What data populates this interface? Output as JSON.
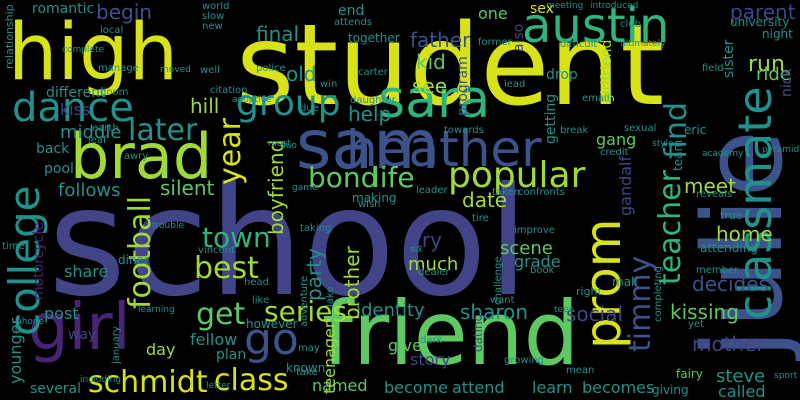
{
  "palette": {
    "background": "#000000",
    "yellow": "#d8e219",
    "lime": "#a0da39",
    "green": "#5ec962",
    "teal_green": "#2fb47c",
    "teal": "#21918c",
    "blue_teal": "#2c728e",
    "slate": "#3b528b",
    "indigo": "#414487",
    "purple": "#482475",
    "dark_purple": "#440154"
  },
  "words": [
    {
      "text": "school",
      "color": "indigo",
      "vertical": false
    },
    {
      "text": "student",
      "color": "yellow",
      "vertical": false
    },
    {
      "text": "high",
      "color": "yellow",
      "vertical": false
    },
    {
      "text": "friend",
      "color": "green",
      "vertical": false
    },
    {
      "text": "julie",
      "color": "slate",
      "vertical": true
    },
    {
      "text": "sam",
      "color": "slate",
      "vertical": false
    },
    {
      "text": "classmate",
      "color": "teal",
      "vertical": true
    },
    {
      "text": "brad",
      "color": "lime",
      "vertical": false
    },
    {
      "text": "heather",
      "color": "slate",
      "vertical": false
    },
    {
      "text": "sara",
      "color": "teal_green",
      "vertical": false
    },
    {
      "text": "austin",
      "color": "teal_green",
      "vertical": false
    },
    {
      "text": "girl",
      "color": "purple",
      "vertical": false
    },
    {
      "text": "prom",
      "color": "yellow",
      "vertical": true
    },
    {
      "text": "college",
      "color": "teal",
      "vertical": true
    },
    {
      "text": "popular",
      "color": "lime",
      "vertical": false
    },
    {
      "text": "dance",
      "color": "teal",
      "vertical": false
    },
    {
      "text": "group",
      "color": "teal",
      "vertical": false
    },
    {
      "text": "go",
      "color": "slate",
      "vertical": false
    },
    {
      "text": "bond",
      "color": "green",
      "vertical": false
    },
    {
      "text": "life",
      "color": "green",
      "vertical": false
    },
    {
      "text": "year",
      "color": "yellow",
      "vertical": true
    },
    {
      "text": "schmidt",
      "color": "yellow",
      "vertical": false
    },
    {
      "text": "class",
      "color": "yellow",
      "vertical": false
    },
    {
      "text": "football",
      "color": "lime",
      "vertical": true
    },
    {
      "text": "timmy",
      "color": "slate",
      "vertical": true
    },
    {
      "text": "teacher",
      "color": "teal_green",
      "vertical": true
    },
    {
      "text": "find",
      "color": "teal",
      "vertical": true
    },
    {
      "text": "later",
      "color": "teal",
      "vertical": false
    },
    {
      "text": "best",
      "color": "lime",
      "vertical": false
    },
    {
      "text": "town",
      "color": "teal_green",
      "vertical": false
    },
    {
      "text": "get",
      "color": "green",
      "vertical": false
    },
    {
      "text": "series",
      "color": "lime",
      "vertical": false
    },
    {
      "text": "begin",
      "color": "slate",
      "vertical": false
    },
    {
      "text": "final",
      "color": "teal",
      "vertical": false
    },
    {
      "text": "father",
      "color": "slate",
      "vertical": false
    },
    {
      "text": "kid",
      "color": "green",
      "vertical": false
    },
    {
      "text": "see",
      "color": "lime",
      "vertical": false
    },
    {
      "text": "old",
      "color": "teal",
      "vertical": false
    },
    {
      "text": "help",
      "color": "teal",
      "vertical": false
    },
    {
      "text": "boyfriend",
      "color": "lime",
      "vertical": true
    },
    {
      "text": "silent",
      "color": "green",
      "vertical": false
    },
    {
      "text": "hill",
      "color": "lime",
      "vertical": false
    },
    {
      "text": "middle",
      "color": "teal",
      "vertical": false
    },
    {
      "text": "follows",
      "color": "teal",
      "vertical": false
    },
    {
      "text": "mother",
      "color": "indigo",
      "vertical": false
    },
    {
      "text": "kissing",
      "color": "green",
      "vertical": false
    },
    {
      "text": "social",
      "color": "indigo",
      "vertical": false
    },
    {
      "text": "sharon",
      "color": "teal",
      "vertical": false
    },
    {
      "text": "identity",
      "color": "teal",
      "vertical": false
    },
    {
      "text": "party",
      "color": "teal",
      "vertical": true
    },
    {
      "text": "brother",
      "color": "lime",
      "vertical": true
    },
    {
      "text": "date",
      "color": "lime",
      "vertical": false
    },
    {
      "text": "try",
      "color": "indigo",
      "vertical": false
    },
    {
      "text": "much",
      "color": "lime",
      "vertical": false
    },
    {
      "text": "scene",
      "color": "green",
      "vertical": false
    },
    {
      "text": "grade",
      "color": "teal",
      "vertical": false
    },
    {
      "text": "home",
      "color": "lime",
      "vertical": false
    },
    {
      "text": "meet",
      "color": "lime",
      "vertical": false
    },
    {
      "text": "run",
      "color": "lime",
      "vertical": false
    },
    {
      "text": "ride",
      "color": "green",
      "vertical": false
    },
    {
      "text": "parent",
      "color": "indigo",
      "vertical": false
    },
    {
      "text": "decides",
      "color": "slate",
      "vertical": false
    },
    {
      "text": "steve",
      "color": "teal",
      "vertical": false
    },
    {
      "text": "called",
      "color": "teal",
      "vertical": false
    },
    {
      "text": "become",
      "color": "teal",
      "vertical": false
    },
    {
      "text": "attend",
      "color": "teal",
      "vertical": false
    },
    {
      "text": "learn",
      "color": "teal",
      "vertical": false
    },
    {
      "text": "becomes",
      "color": "teal",
      "vertical": false
    },
    {
      "text": "named",
      "color": "green",
      "vertical": false
    },
    {
      "text": "story",
      "color": "indigo",
      "vertical": false
    },
    {
      "text": "give",
      "color": "green",
      "vertical": false
    },
    {
      "text": "teenager",
      "color": "lime",
      "vertical": true
    },
    {
      "text": "day",
      "color": "lime",
      "vertical": false
    },
    {
      "text": "fellow",
      "color": "teal",
      "vertical": false
    },
    {
      "text": "plan",
      "color": "teal",
      "vertical": false
    },
    {
      "text": "share",
      "color": "teal",
      "vertical": false
    },
    {
      "text": "post",
      "color": "teal",
      "vertical": false
    },
    {
      "text": "way",
      "color": "indigo",
      "vertical": false
    },
    {
      "text": "younger",
      "color": "teal",
      "vertical": true
    },
    {
      "text": "several",
      "color": "teal",
      "vertical": false
    },
    {
      "text": "motorcycle",
      "color": "purple",
      "vertical": true
    },
    {
      "text": "kiss",
      "color": "indigo",
      "vertical": false
    },
    {
      "text": "back",
      "color": "teal",
      "vertical": false
    },
    {
      "text": "pool",
      "color": "teal",
      "vertical": false
    },
    {
      "text": "romantic",
      "color": "teal",
      "vertical": false
    },
    {
      "text": "different",
      "color": "teal",
      "vertical": false
    },
    {
      "text": "relationship",
      "color": "teal",
      "vertical": true
    },
    {
      "text": "gang",
      "color": "green",
      "vertical": false
    },
    {
      "text": "gandalf",
      "color": "indigo",
      "vertical": true
    },
    {
      "text": "getting",
      "color": "teal",
      "vertical": true
    },
    {
      "text": "program",
      "color": "slate",
      "vertical": true
    },
    {
      "text": "girlfriend",
      "color": "lime",
      "vertical": true
    },
    {
      "text": "drop",
      "color": "teal",
      "vertical": false
    },
    {
      "text": "together",
      "color": "teal",
      "vertical": false
    },
    {
      "text": "end",
      "color": "teal",
      "vertical": false
    },
    {
      "text": "also",
      "color": "indigo",
      "vertical": true
    },
    {
      "text": "one",
      "color": "green",
      "vertical": false
    },
    {
      "text": "sex",
      "color": "yellow",
      "vertical": false
    },
    {
      "text": "sister",
      "color": "teal",
      "vertical": true
    },
    {
      "text": "nick",
      "color": "slate",
      "vertical": true
    },
    {
      "text": "university",
      "color": "teal",
      "vertical": false
    },
    {
      "text": "night",
      "color": "teal",
      "vertical": false
    },
    {
      "text": "eric",
      "color": "teal",
      "vertical": false
    },
    {
      "text": "team",
      "color": "teal",
      "vertical": true
    },
    {
      "text": "true",
      "color": "teal",
      "vertical": false
    },
    {
      "text": "mall",
      "color": "teal",
      "vertical": false
    },
    {
      "text": "right",
      "color": "teal",
      "vertical": false
    },
    {
      "text": "completing",
      "color": "teal",
      "vertical": true
    },
    {
      "text": "attending",
      "color": "teal",
      "vertical": false
    },
    {
      "text": "member",
      "color": "teal",
      "vertical": false
    },
    {
      "text": "fairy",
      "color": "green",
      "vertical": false
    },
    {
      "text": "giving",
      "color": "teal",
      "vertical": false
    },
    {
      "text": "dating",
      "color": "indigo",
      "vertical": true
    },
    {
      "text": "challenge",
      "color": "teal",
      "vertical": true
    },
    {
      "text": "improve",
      "color": "teal",
      "vertical": false
    },
    {
      "text": "book",
      "color": "teal",
      "vertical": false
    },
    {
      "text": "dealer",
      "color": "teal",
      "vertical": false
    },
    {
      "text": "diner",
      "color": "teal",
      "vertical": false
    },
    {
      "text": "vincent",
      "color": "teal",
      "vertical": false
    },
    {
      "text": "however",
      "color": "teal",
      "vertical": false
    },
    {
      "text": "known",
      "color": "teal",
      "vertical": false
    },
    {
      "text": "making",
      "color": "teal",
      "vertical": false
    },
    {
      "text": "wish",
      "color": "teal",
      "vertical": false
    },
    {
      "text": "time",
      "color": "teal",
      "vertical": false
    },
    {
      "text": "january",
      "color": "teal",
      "vertical": true
    },
    {
      "text": "leader",
      "color": "teal",
      "vertical": false
    },
    {
      "text": "adventure",
      "color": "teal",
      "vertical": true
    },
    {
      "text": "lake",
      "color": "teal",
      "vertical": true
    },
    {
      "text": "taken",
      "color": "teal",
      "vertical": false
    },
    {
      "text": "confronts",
      "color": "teal",
      "vertical": false
    },
    {
      "text": "taking",
      "color": "teal",
      "vertical": false
    },
    {
      "text": "head",
      "color": "teal",
      "vertical": false
    },
    {
      "text": "like",
      "color": "teal",
      "vertical": false
    },
    {
      "text": "email",
      "color": "teal",
      "vertical": false
    },
    {
      "text": "break",
      "color": "teal",
      "vertical": false
    },
    {
      "text": "lead",
      "color": "teal",
      "vertical": false
    },
    {
      "text": "towards",
      "color": "teal",
      "vertical": false
    },
    {
      "text": "sexual",
      "color": "teal",
      "vertical": false
    },
    {
      "text": "credit",
      "color": "teal",
      "vertical": false
    },
    {
      "text": "awry",
      "color": "teal",
      "vertical": false
    },
    {
      "text": "earth",
      "color": "teal",
      "vertical": false
    },
    {
      "text": "leaf",
      "color": "teal",
      "vertical": false
    },
    {
      "text": "citation",
      "color": "teal",
      "vertical": false
    },
    {
      "text": "daughter",
      "color": "teal",
      "vertical": false
    },
    {
      "text": "police",
      "color": "teal",
      "vertical": false
    },
    {
      "text": "carter",
      "color": "teal",
      "vertical": false
    },
    {
      "text": "doom",
      "color": "teal",
      "vertical": false
    },
    {
      "text": "local",
      "color": "teal",
      "vertical": false
    },
    {
      "text": "manage",
      "color": "teal",
      "vertical": false
    },
    {
      "text": "world",
      "color": "teal",
      "vertical": false
    },
    {
      "text": "slow",
      "color": "teal",
      "vertical": false
    },
    {
      "text": "new",
      "color": "teal",
      "vertical": false
    },
    {
      "text": "attends",
      "color": "teal",
      "vertical": false
    },
    {
      "text": "former",
      "color": "teal",
      "vertical": false
    },
    {
      "text": "difficult",
      "color": "teal",
      "vertical": false
    },
    {
      "text": "club",
      "color": "teal",
      "vertical": false
    },
    {
      "text": "field",
      "color": "teal",
      "vertical": false
    },
    {
      "text": "reveals",
      "color": "teal",
      "vertical": false
    },
    {
      "text": "yet",
      "color": "teal",
      "vertical": false
    },
    {
      "text": "mean",
      "color": "teal",
      "vertical": false
    },
    {
      "text": "growing",
      "color": "teal",
      "vertical": false
    },
    {
      "text": "want",
      "color": "teal",
      "vertical": false
    },
    {
      "text": "dark",
      "color": "teal",
      "vertical": false
    },
    {
      "text": "well",
      "color": "teal",
      "vertical": false
    },
    {
      "text": "win",
      "color": "teal",
      "vertical": false
    },
    {
      "text": "due",
      "color": "teal",
      "vertical": false
    },
    {
      "text": "must",
      "color": "teal",
      "vertical": false
    },
    {
      "text": "duo",
      "color": "teal",
      "vertical": false
    },
    {
      "text": "tire",
      "color": "teal",
      "vertical": false
    },
    {
      "text": "take",
      "color": "teal",
      "vertical": false
    },
    {
      "text": "may",
      "color": "teal",
      "vertical": false
    },
    {
      "text": "phone",
      "color": "teal",
      "vertical": false
    },
    {
      "text": "including",
      "color": "teal",
      "vertical": false
    },
    {
      "text": "letter",
      "color": "teal",
      "vertical": false
    },
    {
      "text": "trouble",
      "color": "teal",
      "vertical": false
    },
    {
      "text": "learning",
      "color": "teal",
      "vertical": false
    },
    {
      "text": "sport",
      "color": "teal",
      "vertical": false
    },
    {
      "text": "academy",
      "color": "teal",
      "vertical": false
    },
    {
      "text": "pyramid",
      "color": "teal",
      "vertical": false
    },
    {
      "text": "style",
      "color": "teal",
      "vertical": false
    },
    {
      "text": "ultimately",
      "color": "teal",
      "vertical": false
    },
    {
      "text": "introduced",
      "color": "teal",
      "vertical": false
    },
    {
      "text": "meeting",
      "color": "teal",
      "vertical": false
    },
    {
      "text": "complete",
      "color": "teal",
      "vertical": false
    },
    {
      "text": "moved",
      "color": "teal",
      "vertical": false
    },
    {
      "text": "adoptive",
      "color": "teal",
      "vertical": false
    },
    {
      "text": "game",
      "color": "teal",
      "vertical": false
    },
    {
      "text": "six",
      "color": "teal",
      "vertical": false
    },
    {
      "text": "teen",
      "color": "teal",
      "vertical": false
    }
  ]
}
